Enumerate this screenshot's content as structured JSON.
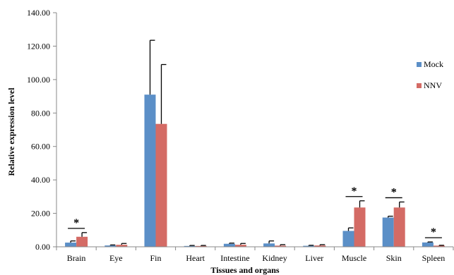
{
  "chart_data": {
    "type": "bar",
    "xlabel": "Tissues and organs",
    "ylabel": "Relative expression level",
    "ylim": [
      0,
      140
    ],
    "yticks": [
      "0.00",
      "20.00",
      "40.00",
      "60.00",
      "80.00",
      "100.00",
      "120.00",
      "140.00"
    ],
    "categories": [
      "Brain",
      "Eye",
      "Fin",
      "Heart",
      "Intestine",
      "Kidney",
      "Liver",
      "Muscle",
      "Skin",
      "Spleen"
    ],
    "series": [
      {
        "name": "Mock",
        "color": "#5b8fc7",
        "values": [
          2.5,
          0.8,
          91,
          0.5,
          1.8,
          2.0,
          0.6,
          9.5,
          17.5,
          2.6
        ],
        "errors": [
          1.0,
          0.3,
          32.5,
          0.3,
          0.4,
          1.5,
          0.3,
          1.8,
          0.8,
          0.3
        ]
      },
      {
        "name": "NNV",
        "color": "#d46b65",
        "values": [
          6.0,
          1.2,
          73.5,
          0.5,
          1.2,
          0.7,
          0.8,
          23.5,
          23.5,
          0.7
        ],
        "errors": [
          2.5,
          0.8,
          35.5,
          0.3,
          0.8,
          0.6,
          0.5,
          4.0,
          3.3,
          0.2
        ]
      }
    ],
    "significance": {
      "marker": "*",
      "categories": [
        "Brain",
        "Muscle",
        "Skin",
        "Spleen"
      ]
    },
    "legend_position": "right",
    "grid": false
  }
}
